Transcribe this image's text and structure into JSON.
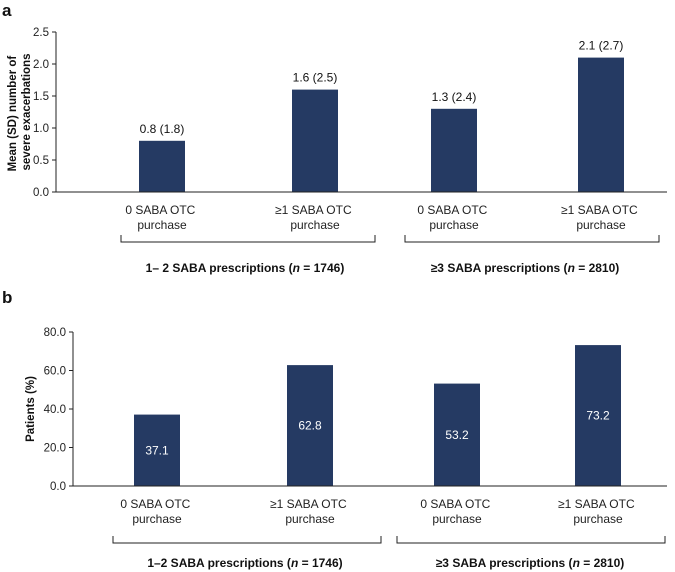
{
  "colors": {
    "bar": "#253a63",
    "axis": "#222222"
  },
  "chart_data": [
    {
      "type": "bar",
      "panel_label": "a",
      "ylabel": [
        "Mean (SD) number of",
        "severe exacerbations"
      ],
      "ylim": [
        0,
        2.5
      ],
      "yticks": [
        "0.0",
        "0.5",
        "1.0",
        "1.5",
        "2.0",
        "2.5"
      ],
      "categories": [
        [
          "0 SABA OTC",
          "purchase"
        ],
        [
          "≥1 SABA OTC",
          "purchase"
        ],
        [
          "0 SABA OTC",
          "purchase"
        ],
        [
          "≥1 SABA OTC",
          "purchase"
        ]
      ],
      "values": [
        0.8,
        1.6,
        1.3,
        2.1
      ],
      "data_labels": [
        "0.8 (1.8)",
        "1.6 (2.5)",
        "1.3 (2.4)",
        "2.1 (2.7)"
      ],
      "label_position": "above",
      "groups": [
        {
          "label_parts": [
            "1– 2 SABA prescriptions (",
            "n",
            " = 1746)"
          ]
        },
        {
          "label_parts": [
            "≥3 SABA prescriptions (",
            "n",
            " = 2810)"
          ]
        }
      ]
    },
    {
      "type": "bar",
      "panel_label": "b",
      "ylabel": [
        "Patients (%)"
      ],
      "ylim": [
        0,
        80
      ],
      "yticks": [
        "0.0",
        "20.0",
        "40.0",
        "60.0",
        "80.0"
      ],
      "categories": [
        [
          "0 SABA OTC",
          "purchase"
        ],
        [
          "≥1 SABA OTC",
          "purchase"
        ],
        [
          "0 SABA OTC",
          "purchase"
        ],
        [
          "≥1 SABA OTC",
          "purchase"
        ]
      ],
      "values": [
        37.1,
        62.8,
        53.2,
        73.2
      ],
      "data_labels": [
        "37.1",
        "62.8",
        "53.2",
        "73.2"
      ],
      "label_position": "inside",
      "groups": [
        {
          "label_parts": [
            "1–2 SABA prescriptions (",
            "n",
            " = 1746)"
          ]
        },
        {
          "label_parts": [
            "≥3 SABA prescriptions (",
            "n",
            " = 2810)"
          ]
        }
      ]
    }
  ]
}
